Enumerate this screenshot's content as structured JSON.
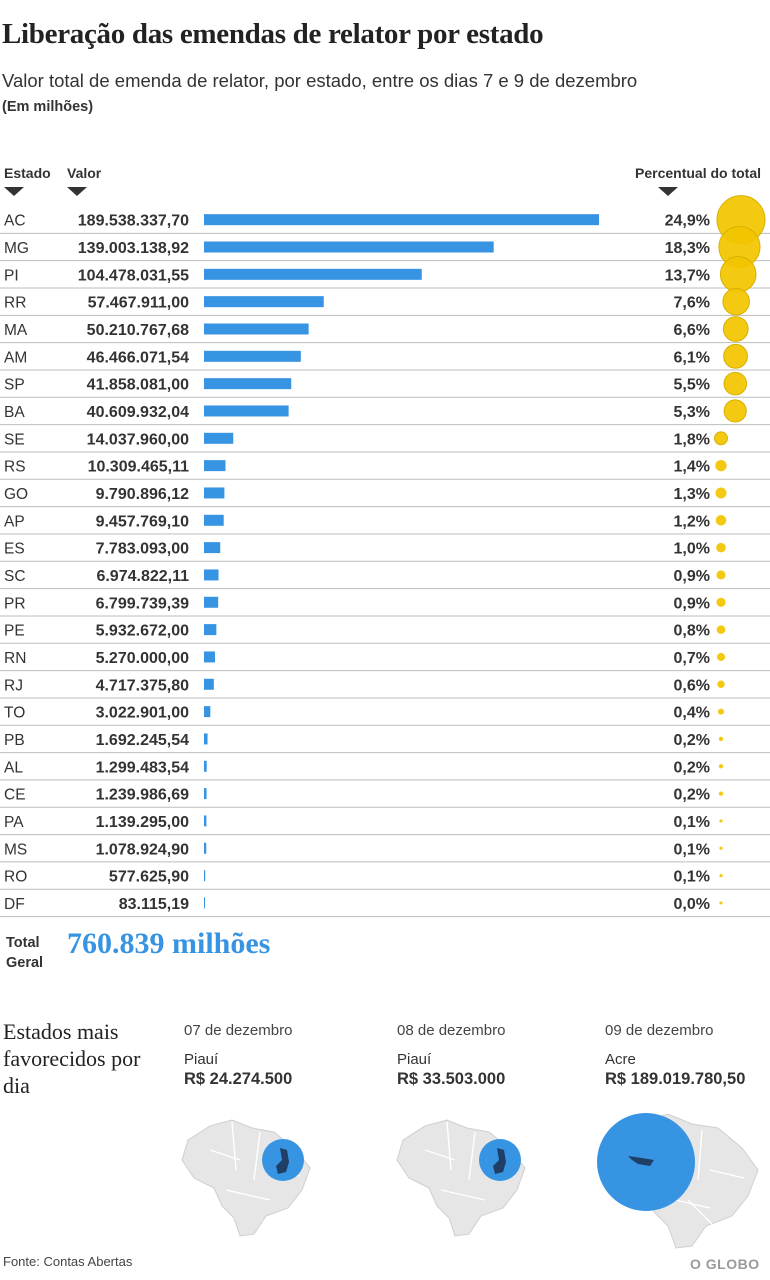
{
  "title": "Liberação das emendas de relator por estado",
  "subtitle": "Valor total de emenda de relator, por estado, entre os dias 7 e 9 de dezembro",
  "unit_note": "(Em milhões)",
  "headers": {
    "state": "Estado",
    "value": "Valor",
    "percent": "Percentual do total"
  },
  "colors": {
    "bar": "#3794e2",
    "bubble": "#f2c500",
    "bubble_stroke": "#d8b000",
    "total": "#3794e2"
  },
  "chart_data": {
    "type": "bar",
    "orientation": "horizontal",
    "title": "Liberação das emendas de relator por estado",
    "categories": [
      "AC",
      "MG",
      "PI",
      "RR",
      "MA",
      "AM",
      "SP",
      "BA",
      "SE",
      "RS",
      "GO",
      "AP",
      "ES",
      "SC",
      "PR",
      "PE",
      "RN",
      "RJ",
      "TO",
      "PB",
      "AL",
      "CE",
      "PA",
      "MS",
      "RO",
      "DF"
    ],
    "values": [
      189538337.7,
      139003138.92,
      104478031.55,
      57467911.0,
      50210767.68,
      46466071.54,
      41858081.0,
      40609932.04,
      14037960.0,
      10309465.11,
      9790896.12,
      9457769.1,
      7783093.0,
      6974822.11,
      6799739.39,
      5932672.0,
      5270000.0,
      4717375.8,
      3022901.0,
      1692245.54,
      1299483.54,
      1239986.69,
      1139295.0,
      1078924.9,
      577625.9,
      83115.19
    ],
    "value_labels": [
      "189.538.337,70",
      "139.003.138,92",
      "104.478.031,55",
      "57.467.911,00",
      "50.210.767,68",
      "46.466.071,54",
      "41.858.081,00",
      "40.609.932,04",
      "14.037.960,00",
      "10.309.465,11",
      "9.790.896,12",
      "9.457.769,10",
      "7.783.093,00",
      "6.974.822,11",
      "6.799.739,39",
      "5.932.672,00",
      "5.270.000,00",
      "4.717.375,80",
      "3.022.901,00",
      "1.692.245,54",
      "1.299.483,54",
      "1.239.986,69",
      "1.139.295,00",
      "1.078.924,90",
      "577.625,90",
      "83.115,19"
    ],
    "percent": [
      24.9,
      18.3,
      13.7,
      7.6,
      6.6,
      6.1,
      5.5,
      5.3,
      1.8,
      1.4,
      1.3,
      1.2,
      1.0,
      0.9,
      0.9,
      0.8,
      0.7,
      0.6,
      0.4,
      0.2,
      0.2,
      0.2,
      0.1,
      0.1,
      0.1,
      0.0
    ],
    "percent_labels": [
      "24,9%",
      "18,3%",
      "13,7%",
      "7,6%",
      "6,6%",
      "6,1%",
      "5,5%",
      "5,3%",
      "1,8%",
      "1,4%",
      "1,3%",
      "1,2%",
      "1,0%",
      "0,9%",
      "0,9%",
      "0,8%",
      "0,7%",
      "0,6%",
      "0,4%",
      "0,2%",
      "0,2%",
      "0,2%",
      "0,1%",
      "0,1%",
      "0,1%",
      "0,0%"
    ],
    "xlim": [
      0,
      189538337.7
    ]
  },
  "total": {
    "label_line1": "Total",
    "label_line2": "Geral",
    "value": "760.839 milhões"
  },
  "favored": {
    "label": "Estados mais favorecidos por dia",
    "days": [
      {
        "date": "07 de dezembro",
        "state": "Piauí",
        "value": "R$ 24.274.500"
      },
      {
        "date": "08 de dezembro",
        "state": "Piauí",
        "value": "R$ 33.503.000"
      },
      {
        "date": "09 de dezembro",
        "state": "Acre",
        "value": "R$ 189.019.780,50"
      }
    ]
  },
  "source": "Fonte: Contas Abertas",
  "logo": "O GLOBO"
}
